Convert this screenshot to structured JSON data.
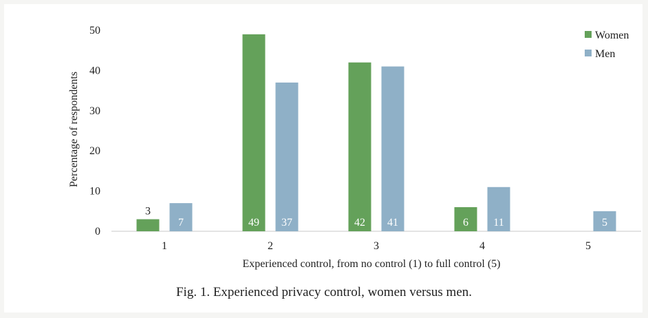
{
  "chart_data": {
    "type": "bar",
    "caption": "Fig. 1. Experienced privacy control, women versus men.",
    "xlabel": "Experienced control, from no control (1) to full control (5)",
    "ylabel": "Percentage of respondents",
    "categories": [
      "1",
      "2",
      "3",
      "4",
      "5"
    ],
    "ylim": [
      0,
      50
    ],
    "yticks": [
      0,
      10,
      20,
      30,
      40,
      50
    ],
    "grid": false,
    "legend_position": "top-right",
    "series": [
      {
        "name": "Women",
        "color": "#64a15a",
        "values": [
          3,
          49,
          42,
          6,
          null
        ],
        "labels": [
          "3",
          "49",
          "42",
          "6",
          ""
        ]
      },
      {
        "name": "Men",
        "color": "#8fb0c7",
        "values": [
          7,
          37,
          41,
          11,
          5
        ],
        "labels": [
          "7",
          "37",
          "41",
          "11",
          "5"
        ]
      }
    ]
  }
}
